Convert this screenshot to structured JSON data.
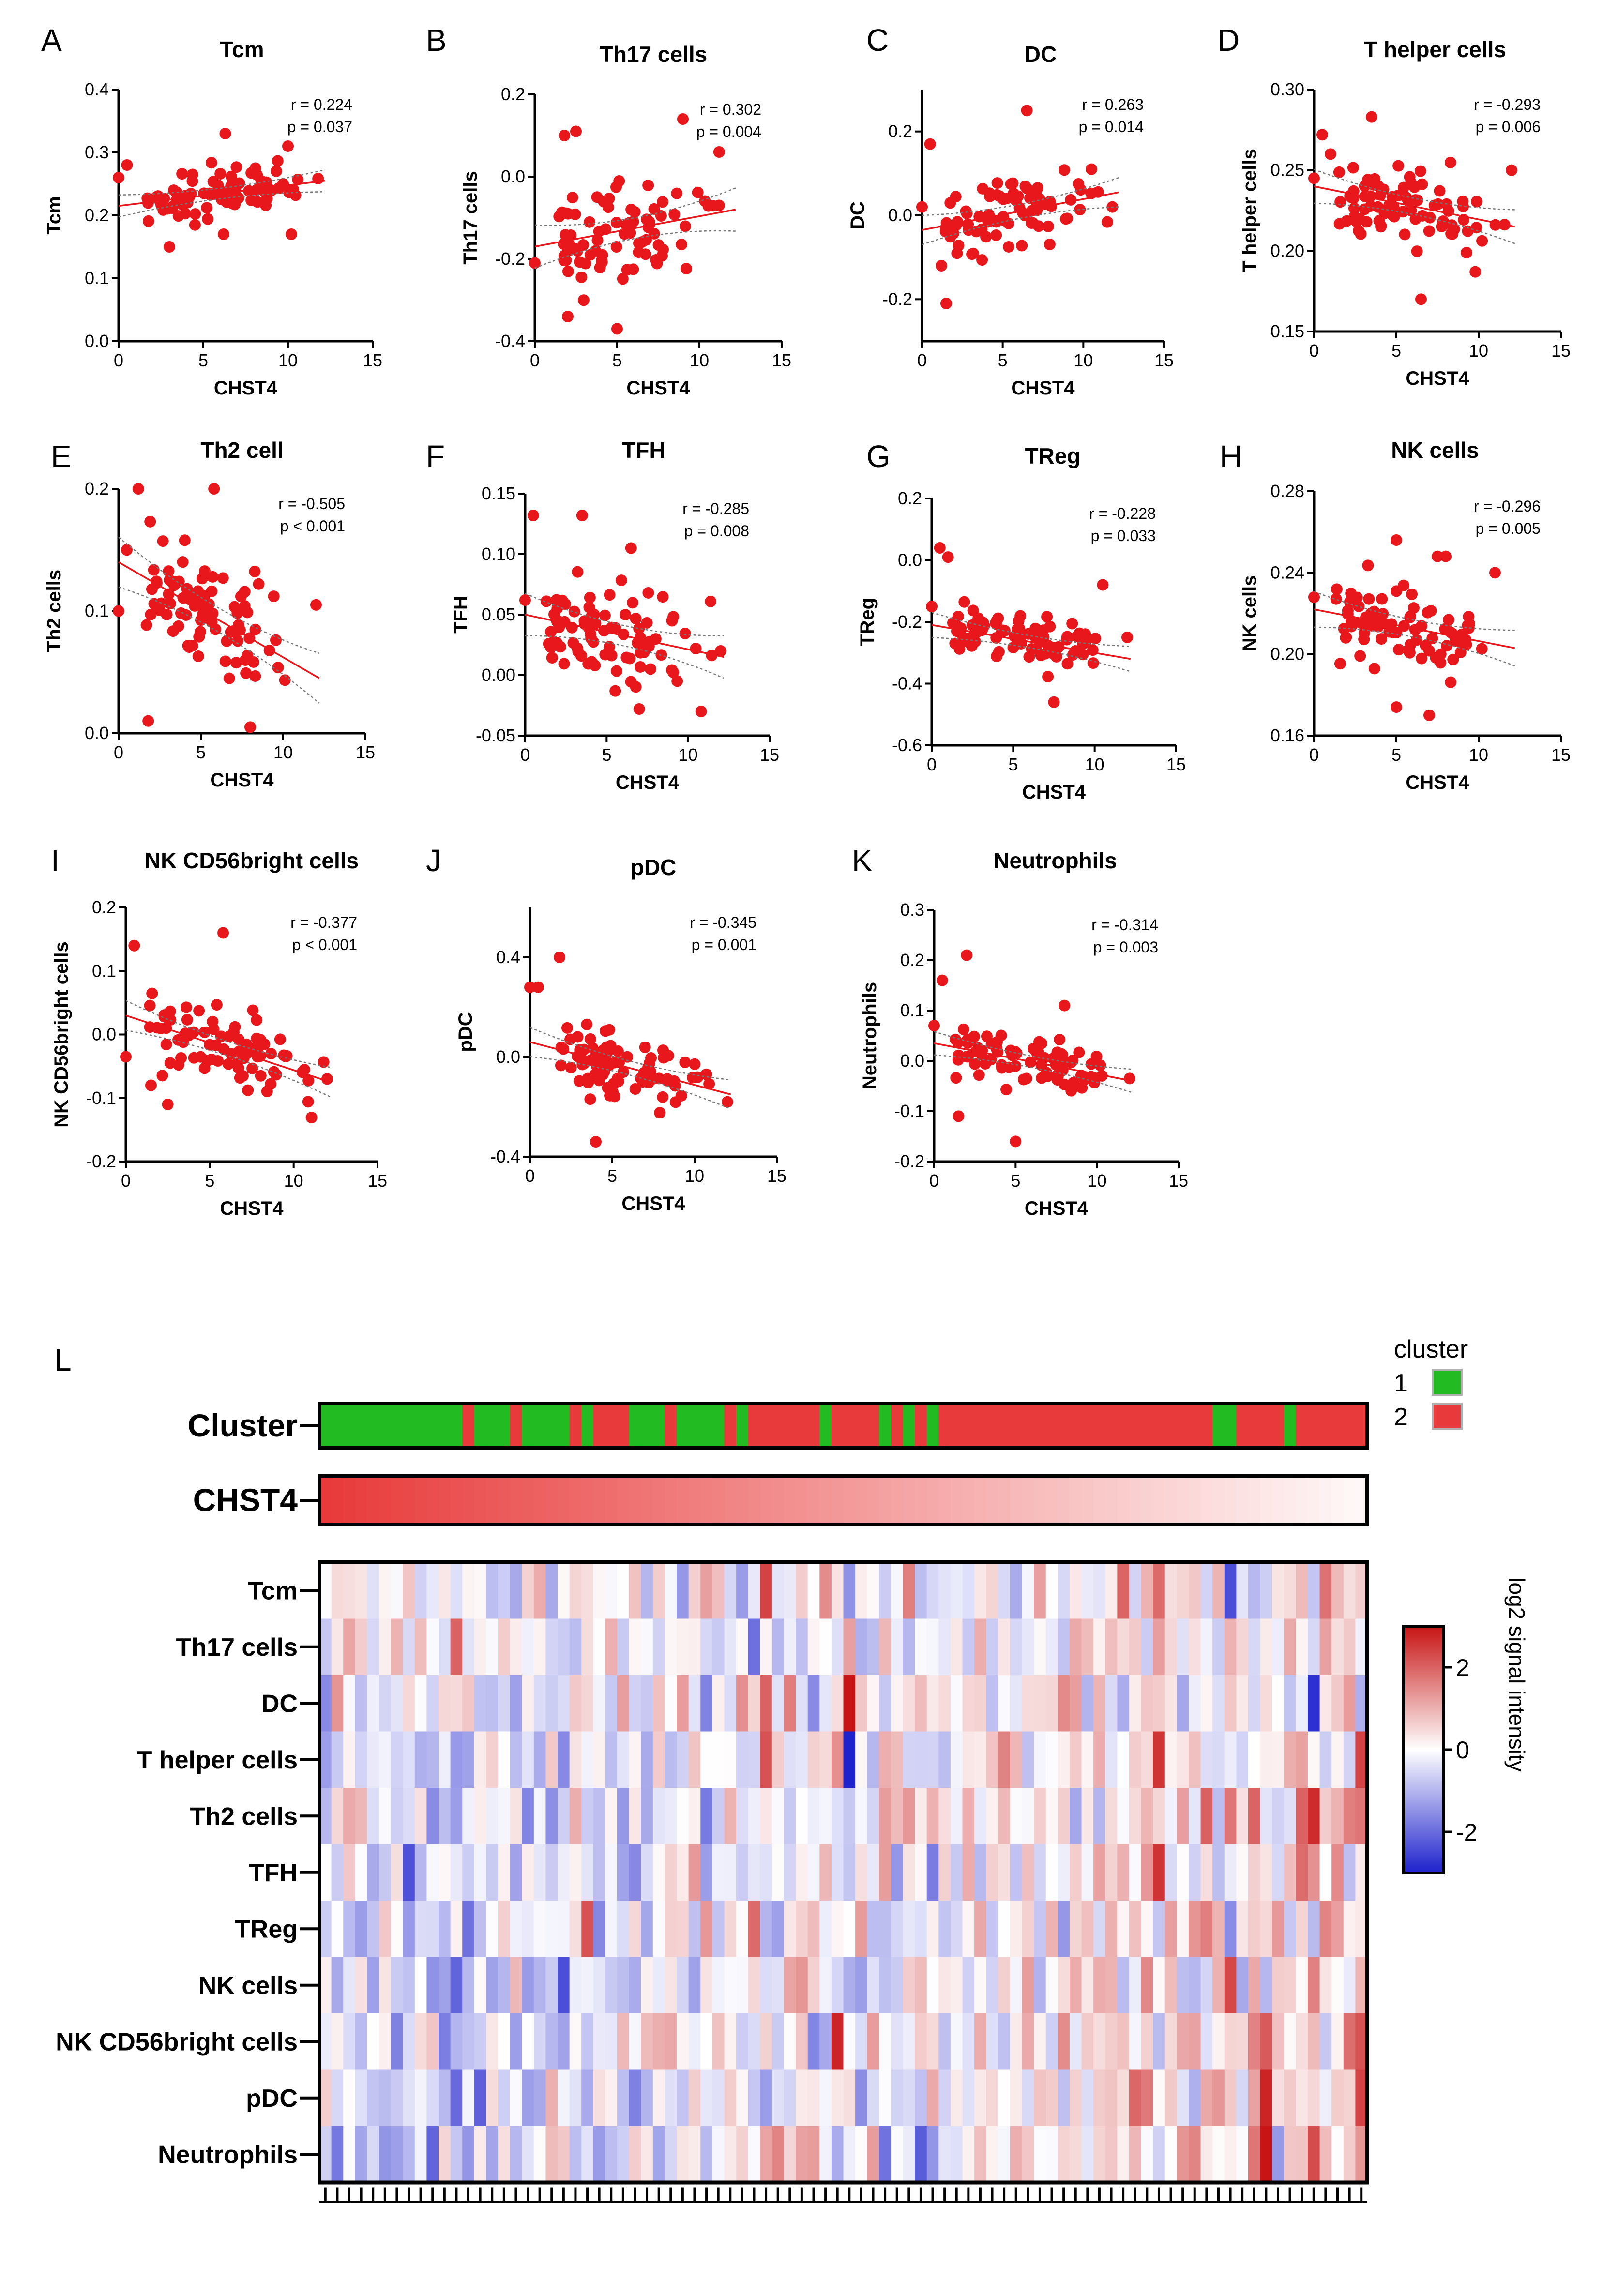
{
  "figure": {
    "panel_L_label": "L",
    "cluster_legend": {
      "title": "cluster",
      "items": [
        {
          "label": "1",
          "color": "#22bb22"
        },
        {
          "label": "2",
          "color": "#e83a3a"
        }
      ]
    },
    "heatmap_colorbar": {
      "title": "log2 signal intensity",
      "ticks": [
        "2",
        "0",
        "-2"
      ],
      "colors": {
        "high": "#c81414",
        "mid": "#ffffff",
        "low": "#1e22cc"
      }
    }
  },
  "chart_data": [
    {
      "type": "scatter",
      "panel": "A",
      "title": "Tcm",
      "xlabel": "CHST4",
      "ylabel": "Tcm",
      "xlim": [
        0,
        15
      ],
      "ylim": [
        0,
        0.4
      ],
      "xticks": [
        0,
        5,
        10,
        15
      ],
      "yticks": [
        0.0,
        0.1,
        0.2,
        0.3,
        0.4
      ],
      "ytick_labels": [
        "0.0",
        "0.1",
        "0.2",
        "0.3",
        "0.4"
      ],
      "r": "r = 0.224",
      "p": "p = 0.037",
      "fit": [
        [
          0,
          0.215
        ],
        [
          12.2,
          0.255
        ]
      ],
      "y_center": 0.235,
      "y_spread": 0.03,
      "seed": 11,
      "points": [
        [
          0,
          0.26
        ],
        [
          0.5,
          0.28
        ],
        [
          6.3,
          0.33
        ],
        [
          10,
          0.31
        ],
        [
          10.2,
          0.17
        ],
        [
          3,
          0.15
        ],
        [
          6.2,
          0.17
        ]
      ]
    },
    {
      "type": "scatter",
      "panel": "B",
      "title": "Th17 cells",
      "xlabel": "CHST4",
      "ylabel": "Th17 cells",
      "xlim": [
        0,
        15
      ],
      "ylim": [
        -0.4,
        0.2
      ],
      "xticks": [
        0,
        5,
        10,
        15
      ],
      "yticks": [
        -0.4,
        -0.2,
        0.0,
        0.2
      ],
      "ytick_labels": [
        "-0.4",
        "-0.2",
        "0.0",
        "0.2"
      ],
      "r": "r = 0.302",
      "p": "p = 0.004",
      "fit": [
        [
          0,
          -0.17
        ],
        [
          12.2,
          -0.08
        ]
      ],
      "y_center": -0.13,
      "y_spread": 0.09,
      "seed": 23,
      "points": [
        [
          0,
          -0.21
        ],
        [
          1.8,
          0.1
        ],
        [
          2.5,
          0.11
        ],
        [
          9,
          0.14
        ],
        [
          11.2,
          0.06
        ],
        [
          5,
          -0.37
        ],
        [
          2,
          -0.34
        ]
      ]
    },
    {
      "type": "scatter",
      "panel": "C",
      "title": "DC",
      "xlabel": "CHST4",
      "ylabel": "DC",
      "xlim": [
        0,
        15
      ],
      "ylim": [
        -0.3,
        0.3
      ],
      "xticks": [
        0,
        5,
        10,
        15
      ],
      "yticks": [
        -0.2,
        0.0,
        0.2
      ],
      "ytick_labels": [
        "-0.2",
        "0.0",
        "0.2"
      ],
      "r": "r = 0.263",
      "p": "p = 0.014",
      "fit": [
        [
          0,
          -0.035
        ],
        [
          12.2,
          0.055
        ]
      ],
      "y_center": 0.01,
      "y_spread": 0.06,
      "seed": 37,
      "points": [
        [
          0,
          0.02
        ],
        [
          0.5,
          0.17
        ],
        [
          6.5,
          0.25
        ],
        [
          1.5,
          -0.21
        ],
        [
          1.2,
          -0.12
        ],
        [
          11.8,
          0.02
        ],
        [
          10.5,
          0.11
        ]
      ]
    },
    {
      "type": "scatter",
      "panel": "D",
      "title": "T helper cells",
      "xlabel": "CHST4",
      "ylabel": "T helper cells",
      "xlim": [
        0,
        15
      ],
      "ylim": [
        0.15,
        0.3
      ],
      "xticks": [
        0,
        5,
        10,
        15
      ],
      "yticks": [
        0.15,
        0.2,
        0.25,
        0.3
      ],
      "ytick_labels": [
        "0.15",
        "0.20",
        "0.25",
        "0.30"
      ],
      "r": "r = -0.293",
      "p": "p = 0.006",
      "fit": [
        [
          0,
          0.24
        ],
        [
          12.2,
          0.215
        ]
      ],
      "y_center": 0.227,
      "y_spread": 0.018,
      "seed": 41,
      "points": [
        [
          0,
          0.245
        ],
        [
          0.5,
          0.272
        ],
        [
          3.5,
          0.283
        ],
        [
          6.5,
          0.17
        ],
        [
          12,
          0.25
        ],
        [
          9.8,
          0.187
        ],
        [
          1,
          0.26
        ]
      ]
    },
    {
      "type": "scatter",
      "panel": "E",
      "title": "Th2 cell",
      "xlabel": "CHST4",
      "ylabel": "Th2 cells",
      "xlim": [
        0,
        15
      ],
      "ylim": [
        0,
        0.2
      ],
      "xticks": [
        0,
        5,
        10,
        15
      ],
      "yticks": [
        0.0,
        0.1,
        0.2
      ],
      "ytick_labels": [
        "0.0",
        "0.1",
        "0.2"
      ],
      "r": "r = -0.505",
      "p": "p < 0.001",
      "fit": [
        [
          0,
          0.14
        ],
        [
          12.2,
          0.045
        ]
      ],
      "y_center": 0.095,
      "y_spread": 0.035,
      "seed": 53,
      "points": [
        [
          0,
          0.1
        ],
        [
          0.5,
          0.15
        ],
        [
          1.2,
          0.2
        ],
        [
          5.8,
          0.21
        ],
        [
          1.8,
          0.01
        ],
        [
          8,
          0.005
        ],
        [
          12,
          0.105
        ]
      ]
    },
    {
      "type": "scatter",
      "panel": "F",
      "title": "TFH",
      "xlabel": "CHST4",
      "ylabel": "TFH",
      "xlim": [
        0,
        15
      ],
      "ylim": [
        -0.05,
        0.15
      ],
      "xticks": [
        0,
        5,
        10,
        15
      ],
      "yticks": [
        -0.05,
        0.0,
        0.05,
        0.1,
        0.15
      ],
      "ytick_labels": [
        "-0.05",
        "0.00",
        "0.05",
        "0.10",
        "0.15"
      ],
      "r": "r = -0.285",
      "p": "p = 0.008",
      "fit": [
        [
          0,
          0.05
        ],
        [
          12.2,
          0.015
        ]
      ],
      "y_center": 0.032,
      "y_spread": 0.03,
      "seed": 67,
      "points": [
        [
          0,
          0.062
        ],
        [
          0.5,
          0.132
        ],
        [
          3.5,
          0.132
        ],
        [
          6.5,
          0.105
        ],
        [
          10.8,
          -0.03
        ],
        [
          7,
          -0.028
        ],
        [
          12,
          0.02
        ]
      ]
    },
    {
      "type": "scatter",
      "panel": "G",
      "title": "TReg",
      "xlabel": "CHST4",
      "ylabel": "TReg",
      "xlim": [
        0,
        15
      ],
      "ylim": [
        -0.6,
        0.2
      ],
      "xticks": [
        0,
        5,
        10,
        15
      ],
      "yticks": [
        -0.6,
        -0.4,
        -0.2,
        0.0,
        0.2
      ],
      "ytick_labels": [
        "-0.6",
        "-0.4",
        "-0.2",
        "0.0",
        "0.2"
      ],
      "r": "r = -0.228",
      "p": "p = 0.033",
      "fit": [
        [
          0,
          -0.21
        ],
        [
          12.2,
          -0.32
        ]
      ],
      "y_center": -0.27,
      "y_spread": 0.07,
      "seed": 71,
      "points": [
        [
          0,
          -0.15
        ],
        [
          0.5,
          0.04
        ],
        [
          1,
          0.01
        ],
        [
          10.5,
          -0.08
        ],
        [
          7.5,
          -0.46
        ],
        [
          12,
          -0.25
        ]
      ]
    },
    {
      "type": "scatter",
      "panel": "H",
      "title": "NK cells",
      "xlabel": "CHST4",
      "ylabel": "NK cells",
      "xlim": [
        0,
        15
      ],
      "ylim": [
        0.16,
        0.28
      ],
      "xticks": [
        0,
        5,
        10,
        15
      ],
      "yticks": [
        0.16,
        0.2,
        0.24,
        0.28
      ],
      "ytick_labels": [
        "0.16",
        "0.20",
        "0.24",
        "0.28"
      ],
      "r": "r = -0.296",
      "p": "p = 0.005",
      "fit": [
        [
          0,
          0.222
        ],
        [
          12.2,
          0.203
        ]
      ],
      "y_center": 0.212,
      "y_spread": 0.015,
      "seed": 83,
      "points": [
        [
          0,
          0.228
        ],
        [
          5,
          0.256
        ],
        [
          7.5,
          0.248
        ],
        [
          8,
          0.248
        ],
        [
          7,
          0.17
        ],
        [
          5,
          0.174
        ],
        [
          11,
          0.24
        ]
      ]
    },
    {
      "type": "scatter",
      "panel": "I",
      "title": "NK CD56bright cells",
      "xlabel": "CHST4",
      "ylabel": "NK CD56bright cells",
      "xlim": [
        0,
        15
      ],
      "ylim": [
        -0.2,
        0.2
      ],
      "xticks": [
        0,
        5,
        10,
        15
      ],
      "yticks": [
        -0.2,
        -0.1,
        0.0,
        0.1,
        0.2
      ],
      "ytick_labels": [
        "-0.2",
        "-0.1",
        "0.0",
        "0.1",
        "0.2"
      ],
      "r": "r = -0.377",
      "p": "p < 0.001",
      "fit": [
        [
          0,
          0.03
        ],
        [
          12.2,
          -0.075
        ]
      ],
      "y_center": -0.02,
      "y_spread": 0.04,
      "seed": 97,
      "points": [
        [
          0,
          -0.035
        ],
        [
          0.5,
          0.14
        ],
        [
          5.8,
          0.16
        ],
        [
          12,
          -0.07
        ],
        [
          2.5,
          -0.11
        ],
        [
          1.5,
          -0.08
        ]
      ]
    },
    {
      "type": "scatter",
      "panel": "J",
      "title": "pDC",
      "xlabel": "CHST4",
      "ylabel": "pDC",
      "xlim": [
        0,
        15
      ],
      "ylim": [
        -0.4,
        0.6
      ],
      "xticks": [
        0,
        5,
        10,
        15
      ],
      "yticks": [
        -0.4,
        0.0,
        0.4
      ],
      "ytick_labels": [
        "-0.4",
        "0.0",
        "0.4"
      ],
      "r": "r = -0.345",
      "p": "p = 0.001",
      "fit": [
        [
          0,
          0.06
        ],
        [
          12.2,
          -0.15
        ]
      ],
      "y_center": -0.04,
      "y_spread": 0.1,
      "seed": 101,
      "points": [
        [
          0,
          0.28
        ],
        [
          0.5,
          0.28
        ],
        [
          1.8,
          0.4
        ],
        [
          4,
          -0.34
        ],
        [
          12,
          -0.18
        ]
      ]
    },
    {
      "type": "scatter",
      "panel": "K",
      "title": "Neutrophils",
      "xlabel": "CHST4",
      "ylabel": "Neutrophils",
      "xlim": [
        0,
        15
      ],
      "ylim": [
        -0.2,
        0.3
      ],
      "xticks": [
        0,
        5,
        10,
        15
      ],
      "yticks": [
        -0.2,
        -0.1,
        0.0,
        0.1,
        0.2,
        0.3
      ],
      "ytick_labels": [
        "-0.2",
        "-0.1",
        "0.0",
        "0.1",
        "0.2",
        "0.3"
      ],
      "r": "r = -0.314",
      "p": "p = 0.003",
      "fit": [
        [
          0,
          0.035
        ],
        [
          12.2,
          -0.04
        ]
      ],
      "y_center": 0.0,
      "y_spread": 0.04,
      "seed": 113,
      "points": [
        [
          0,
          0.07
        ],
        [
          0.5,
          0.16
        ],
        [
          2,
          0.21
        ],
        [
          5,
          -0.16
        ],
        [
          1.5,
          -0.11
        ],
        [
          8,
          0.11
        ],
        [
          12,
          -0.035
        ]
      ]
    },
    {
      "type": "heatmap",
      "panel": "L",
      "rows": [
        "Tcm",
        "Th17 cells",
        "DC",
        "T helper cells",
        "Th2 cells",
        "TFH",
        "TReg",
        "NK cells",
        "NK CD56bright cells",
        "pDC",
        "Neutrophils"
      ],
      "annotation_rows": [
        "Cluster",
        "CHST4"
      ],
      "n_samples": 88,
      "cluster": [
        1,
        1,
        1,
        1,
        1,
        1,
        1,
        1,
        1,
        1,
        1,
        1,
        2,
        1,
        1,
        1,
        2,
        1,
        1,
        1,
        1,
        2,
        1,
        2,
        2,
        2,
        1,
        1,
        1,
        2,
        1,
        1,
        1,
        1,
        2,
        1,
        2,
        2,
        2,
        2,
        2,
        2,
        1,
        2,
        2,
        2,
        2,
        1,
        2,
        1,
        2,
        1,
        2,
        2,
        2,
        2,
        2,
        2,
        2,
        2,
        2,
        2,
        2,
        2,
        2,
        2,
        2,
        2,
        2,
        2,
        2,
        2,
        2,
        2,
        2,
        1,
        1,
        2,
        2,
        2,
        2,
        1,
        2,
        2,
        2,
        2,
        2,
        2
      ],
      "value_range": [
        -3,
        3
      ],
      "seed": 2024,
      "hotspots": [
        {
          "row": 2,
          "col": 44,
          "v": 3.0
        },
        {
          "row": 3,
          "col": 44,
          "v": -3.0
        },
        {
          "row": 1,
          "col": 11,
          "v": 2.0
        },
        {
          "row": 2,
          "col": 83,
          "v": -2.8
        },
        {
          "row": 0,
          "col": 76,
          "v": -2.4
        },
        {
          "row": 0,
          "col": 37,
          "v": 2.4
        },
        {
          "row": 3,
          "col": 70,
          "v": 2.6
        },
        {
          "row": 5,
          "col": 70,
          "v": 2.6
        },
        {
          "row": 10,
          "col": 79,
          "v": 3.0
        },
        {
          "row": 9,
          "col": 79,
          "v": 2.8
        },
        {
          "row": 8,
          "col": 43,
          "v": 2.8
        },
        {
          "row": 6,
          "col": 22,
          "v": 2.2
        },
        {
          "row": 7,
          "col": 20,
          "v": -2.4
        },
        {
          "row": 10,
          "col": 50,
          "v": -2.2
        },
        {
          "row": 3,
          "col": 87,
          "v": 2.4
        },
        {
          "row": 8,
          "col": 87,
          "v": 2.2
        },
        {
          "row": 9,
          "col": 87,
          "v": 2.4
        },
        {
          "row": 4,
          "col": 82,
          "v": 2.0
        },
        {
          "row": 2,
          "col": 37,
          "v": 2.0
        },
        {
          "row": 3,
          "col": 37,
          "v": 2.2
        }
      ]
    }
  ]
}
